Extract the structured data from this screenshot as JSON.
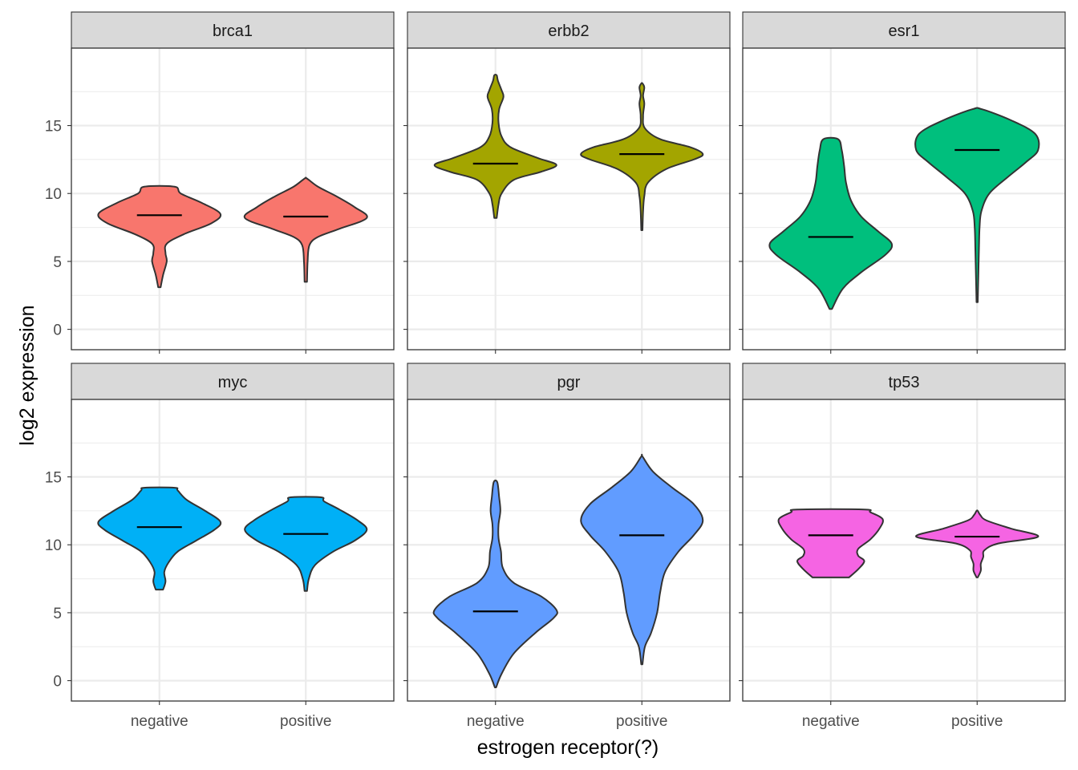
{
  "chart_data": {
    "type": "violin",
    "xlabel": "estrogen receptor(?)",
    "ylabel": "log2 expression",
    "ylim": [
      -1.5,
      20.7
    ],
    "y_ticks": [
      0,
      5,
      10,
      15
    ],
    "categories": [
      "negative",
      "positive"
    ],
    "grid": true,
    "facet_layout": "2 rows x 3 columns",
    "facets": [
      {
        "gene": "brca1",
        "color": "#F8766D",
        "violins": [
          {
            "group": "negative",
            "median": 8.4,
            "min": 3.1,
            "max": 10.5,
            "profile": [
              [
                3.1,
                0.02
              ],
              [
                4.0,
                0.06
              ],
              [
                5.0,
                0.12
              ],
              [
                5.6,
                0.1
              ],
              [
                6.3,
                0.12
              ],
              [
                7.0,
                0.4
              ],
              [
                7.8,
                0.85
              ],
              [
                8.5,
                1.0
              ],
              [
                9.3,
                0.7
              ],
              [
                10.0,
                0.35
              ],
              [
                10.5,
                0.25
              ]
            ]
          },
          {
            "group": "positive",
            "median": 8.3,
            "min": 3.5,
            "max": 11.1,
            "profile": [
              [
                3.5,
                0.02
              ],
              [
                5.0,
                0.03
              ],
              [
                6.2,
                0.06
              ],
              [
                6.8,
                0.2
              ],
              [
                7.4,
                0.55
              ],
              [
                8.2,
                1.0
              ],
              [
                9.0,
                0.8
              ],
              [
                9.8,
                0.5
              ],
              [
                10.5,
                0.2
              ],
              [
                11.1,
                0.02
              ]
            ]
          }
        ]
      },
      {
        "gene": "erbb2",
        "color": "#A3A500",
        "violins": [
          {
            "group": "negative",
            "median": 12.2,
            "min": 8.2,
            "max": 18.7,
            "profile": [
              [
                8.2,
                0.02
              ],
              [
                9.2,
                0.05
              ],
              [
                10.0,
                0.1
              ],
              [
                11.0,
                0.3
              ],
              [
                11.6,
                0.75
              ],
              [
                12.1,
                1.0
              ],
              [
                12.6,
                0.7
              ],
              [
                13.4,
                0.25
              ],
              [
                14.2,
                0.1
              ],
              [
                15.2,
                0.05
              ],
              [
                16.2,
                0.06
              ],
              [
                17.1,
                0.13
              ],
              [
                17.6,
                0.1
              ],
              [
                18.3,
                0.04
              ],
              [
                18.7,
                0.02
              ]
            ]
          },
          {
            "group": "positive",
            "median": 12.9,
            "min": 7.3,
            "max": 18.1,
            "profile": [
              [
                7.3,
                0.01
              ],
              [
                8.7,
                0.02
              ],
              [
                9.8,
                0.04
              ],
              [
                10.8,
                0.1
              ],
              [
                11.8,
                0.4
              ],
              [
                12.5,
                0.85
              ],
              [
                12.9,
                1.0
              ],
              [
                13.4,
                0.8
              ],
              [
                14.0,
                0.3
              ],
              [
                14.8,
                0.05
              ],
              [
                15.7,
                0.02
              ],
              [
                16.6,
                0.04
              ],
              [
                17.2,
                0.02
              ],
              [
                17.8,
                0.04
              ],
              [
                18.1,
                0.01
              ]
            ]
          }
        ]
      },
      {
        "gene": "esr1",
        "color": "#00BF7D",
        "violins": [
          {
            "group": "negative",
            "median": 6.8,
            "min": 1.5,
            "max": 14.0,
            "profile": [
              [
                1.5,
                0.02
              ],
              [
                3.0,
                0.2
              ],
              [
                4.2,
                0.5
              ],
              [
                5.5,
                0.9
              ],
              [
                6.3,
                1.0
              ],
              [
                7.2,
                0.78
              ],
              [
                8.3,
                0.5
              ],
              [
                9.5,
                0.33
              ],
              [
                10.8,
                0.25
              ],
              [
                12.0,
                0.22
              ],
              [
                13.2,
                0.18
              ],
              [
                14.0,
                0.12
              ]
            ]
          },
          {
            "group": "positive",
            "median": 13.2,
            "min": 2.0,
            "max": 16.2,
            "profile": [
              [
                2.0,
                0.01
              ],
              [
                4.0,
                0.02
              ],
              [
                6.0,
                0.03
              ],
              [
                7.5,
                0.04
              ],
              [
                8.7,
                0.07
              ],
              [
                10.0,
                0.2
              ],
              [
                11.2,
                0.5
              ],
              [
                12.3,
                0.8
              ],
              [
                13.2,
                1.0
              ],
              [
                14.4,
                0.95
              ],
              [
                15.4,
                0.55
              ],
              [
                16.2,
                0.08
              ]
            ]
          }
        ]
      },
      {
        "gene": "myc",
        "color": "#00B0F6",
        "violins": [
          {
            "group": "negative",
            "median": 11.3,
            "min": 6.7,
            "max": 14.2,
            "profile": [
              [
                6.7,
                0.06
              ],
              [
                7.3,
                0.1
              ],
              [
                8.0,
                0.08
              ],
              [
                8.7,
                0.15
              ],
              [
                9.5,
                0.3
              ],
              [
                10.3,
                0.6
              ],
              [
                11.1,
                0.9
              ],
              [
                11.7,
                1.0
              ],
              [
                12.5,
                0.75
              ],
              [
                13.3,
                0.45
              ],
              [
                14.0,
                0.3
              ],
              [
                14.2,
                0.25
              ]
            ]
          },
          {
            "group": "positive",
            "median": 10.8,
            "min": 6.6,
            "max": 13.5,
            "profile": [
              [
                6.6,
                0.02
              ],
              [
                7.5,
                0.05
              ],
              [
                8.5,
                0.15
              ],
              [
                9.5,
                0.45
              ],
              [
                10.3,
                0.8
              ],
              [
                11.1,
                1.0
              ],
              [
                11.8,
                0.85
              ],
              [
                12.6,
                0.55
              ],
              [
                13.2,
                0.3
              ],
              [
                13.5,
                0.25
              ]
            ]
          }
        ]
      },
      {
        "gene": "pgr",
        "color": "#619CFF",
        "violins": [
          {
            "group": "negative",
            "median": 5.1,
            "min": -0.5,
            "max": 14.6,
            "profile": [
              [
                -0.5,
                0.01
              ],
              [
                0.5,
                0.1
              ],
              [
                2.0,
                0.3
              ],
              [
                3.5,
                0.65
              ],
              [
                4.6,
                0.95
              ],
              [
                5.2,
                1.0
              ],
              [
                6.2,
                0.75
              ],
              [
                7.2,
                0.3
              ],
              [
                8.3,
                0.12
              ],
              [
                9.5,
                0.09
              ],
              [
                10.5,
                0.05
              ],
              [
                11.5,
                0.05
              ],
              [
                12.5,
                0.08
              ],
              [
                13.5,
                0.06
              ],
              [
                14.6,
                0.03
              ]
            ]
          },
          {
            "group": "positive",
            "median": 10.7,
            "min": 1.2,
            "max": 16.5,
            "profile": [
              [
                1.2,
                0.01
              ],
              [
                2.5,
                0.05
              ],
              [
                3.5,
                0.15
              ],
              [
                5.0,
                0.25
              ],
              [
                6.5,
                0.3
              ],
              [
                8.0,
                0.38
              ],
              [
                9.5,
                0.6
              ],
              [
                10.7,
                0.85
              ],
              [
                11.8,
                1.0
              ],
              [
                13.0,
                0.85
              ],
              [
                14.2,
                0.5
              ],
              [
                15.4,
                0.18
              ],
              [
                16.5,
                0.01
              ]
            ]
          }
        ]
      },
      {
        "gene": "tp53",
        "color": "#F564E3",
        "violins": [
          {
            "group": "negative",
            "median": 10.7,
            "min": 7.6,
            "max": 12.6,
            "profile": [
              [
                7.6,
                0.3
              ],
              [
                8.2,
                0.45
              ],
              [
                8.8,
                0.55
              ],
              [
                9.2,
                0.45
              ],
              [
                9.7,
                0.45
              ],
              [
                10.4,
                0.65
              ],
              [
                11.2,
                0.8
              ],
              [
                11.9,
                0.85
              ],
              [
                12.4,
                0.65
              ],
              [
                12.6,
                0.55
              ]
            ]
          },
          {
            "group": "positive",
            "median": 10.6,
            "min": 7.6,
            "max": 12.5,
            "profile": [
              [
                7.6,
                0.01
              ],
              [
                8.1,
                0.06
              ],
              [
                8.6,
                0.06
              ],
              [
                9.1,
                0.1
              ],
              [
                9.6,
                0.12
              ],
              [
                10.1,
                0.35
              ],
              [
                10.6,
                1.0
              ],
              [
                11.2,
                0.55
              ],
              [
                11.8,
                0.15
              ],
              [
                12.2,
                0.05
              ],
              [
                12.5,
                0.01
              ]
            ]
          }
        ]
      }
    ]
  }
}
